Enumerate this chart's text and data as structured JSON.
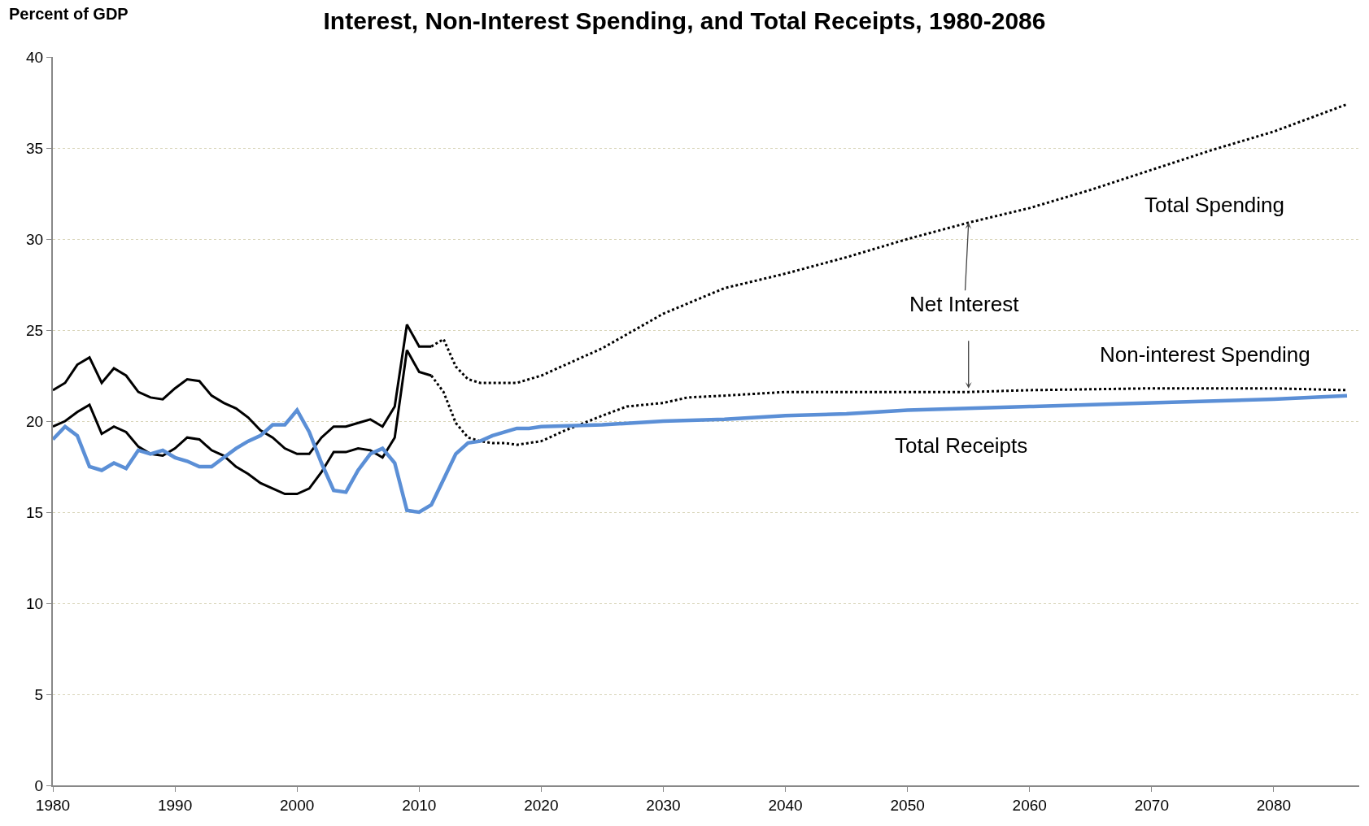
{
  "chart_data": {
    "type": "line",
    "title": "Interest, Non-Interest Spending, and Total Receipts, 1980-2086",
    "ylabel": "Percent of GDP",
    "xlim": [
      1980,
      2087
    ],
    "xticks": [
      1980,
      1990,
      2000,
      2010,
      2020,
      2030,
      2040,
      2050,
      2060,
      2070,
      2080
    ],
    "ylim": [
      0,
      40
    ],
    "yticks": [
      0,
      5,
      10,
      15,
      20,
      25,
      30,
      35,
      40
    ],
    "grid": "y",
    "marker": "none",
    "series": [
      {
        "color": "#000000",
        "line_style": "solid",
        "x": [
          1980,
          1981,
          1982,
          1983,
          1984,
          1985,
          1986,
          1987,
          1988,
          1989,
          1990,
          1991,
          1992,
          1993,
          1994,
          1995,
          1996,
          1997,
          1998,
          1999,
          2000,
          2001,
          2002,
          2003,
          2004,
          2005,
          2006,
          2007,
          2008,
          2009,
          2010,
          2011
        ],
        "values": [
          21.7,
          22.1,
          23.1,
          23.5,
          22.1,
          22.9,
          22.5,
          21.6,
          21.3,
          21.2,
          21.8,
          22.3,
          22.2,
          21.4,
          21.0,
          20.7,
          20.2,
          19.5,
          19.1,
          18.5,
          18.2,
          18.2,
          19.1,
          19.7,
          19.7,
          19.9,
          20.1,
          19.7,
          20.8,
          25.3,
          24.1,
          24.1
        ]
      },
      {
        "color": "#000000",
        "line_style": "dotted",
        "x": [
          2011,
          2012,
          2013,
          2014,
          2015,
          2016,
          2017,
          2018,
          2019,
          2020,
          2025,
          2030,
          2035,
          2040,
          2045,
          2050,
          2055,
          2060,
          2065,
          2070,
          2075,
          2080,
          2086
        ],
        "values": [
          24.1,
          24.5,
          23.0,
          22.3,
          22.1,
          22.1,
          22.1,
          22.1,
          22.3,
          22.5,
          24.0,
          25.9,
          27.3,
          28.1,
          29.0,
          30.0,
          30.9,
          31.7,
          32.7,
          33.8,
          34.9,
          35.9,
          37.4
        ]
      },
      {
        "color": "#000000",
        "line_style": "solid",
        "x": [
          1980,
          1981,
          1982,
          1983,
          1984,
          1985,
          1986,
          1987,
          1988,
          1989,
          1990,
          1991,
          1992,
          1993,
          1994,
          1995,
          1996,
          1997,
          1998,
          1999,
          2000,
          2001,
          2002,
          2003,
          2004,
          2005,
          2006,
          2007,
          2008,
          2009,
          2010,
          2011
        ],
        "values": [
          19.7,
          20.0,
          20.5,
          20.9,
          19.3,
          19.7,
          19.4,
          18.6,
          18.2,
          18.1,
          18.5,
          19.1,
          19.0,
          18.4,
          18.1,
          17.5,
          17.1,
          16.6,
          16.3,
          16.0,
          16.0,
          16.3,
          17.2,
          18.3,
          18.3,
          18.5,
          18.4,
          18.0,
          19.1,
          23.9,
          22.7,
          22.5
        ]
      },
      {
        "color": "#000000",
        "line_style": "dotted",
        "x": [
          2011,
          2012,
          2013,
          2014,
          2015,
          2016,
          2017,
          2018,
          2019,
          2020,
          2022,
          2025,
          2027,
          2030,
          2032,
          2035,
          2040,
          2050,
          2055,
          2060,
          2070,
          2080,
          2086
        ],
        "values": [
          22.5,
          21.6,
          19.9,
          19.1,
          18.9,
          18.8,
          18.8,
          18.7,
          18.8,
          18.9,
          19.5,
          20.3,
          20.8,
          21.0,
          21.3,
          21.4,
          21.6,
          21.6,
          21.6,
          21.7,
          21.8,
          21.8,
          21.7
        ]
      },
      {
        "color": "#5b8fd6",
        "line_style": "solid",
        "x": [
          1980,
          1981,
          1982,
          1983,
          1984,
          1985,
          1986,
          1987,
          1988,
          1989,
          1990,
          1991,
          1992,
          1993,
          1994,
          1995,
          1996,
          1997,
          1998,
          1999,
          2000,
          2001,
          2002,
          2003,
          2004,
          2005,
          2006,
          2007,
          2008,
          2009,
          2010,
          2011,
          2012,
          2013,
          2014,
          2015,
          2016,
          2017,
          2018,
          2019,
          2020,
          2025,
          2030,
          2035,
          2040,
          2045,
          2050,
          2060,
          2070,
          2080,
          2086
        ],
        "values": [
          19.0,
          19.7,
          19.2,
          17.5,
          17.3,
          17.7,
          17.4,
          18.4,
          18.2,
          18.4,
          18.0,
          17.8,
          17.5,
          17.5,
          18.0,
          18.5,
          18.9,
          19.2,
          19.8,
          19.8,
          20.6,
          19.4,
          17.7,
          16.2,
          16.1,
          17.3,
          18.2,
          18.5,
          17.7,
          15.1,
          15.0,
          15.4,
          16.8,
          18.2,
          18.8,
          18.9,
          19.2,
          19.4,
          19.6,
          19.6,
          19.7,
          19.8,
          20.0,
          20.1,
          20.3,
          20.4,
          20.6,
          20.8,
          21.0,
          21.2,
          21.4
        ]
      }
    ],
    "annotations": [
      "Total Spending",
      {
        "text": "Net Interest",
        "x": 2055,
        "y": 30.9
      },
      "Non-interest Spending",
      "Total Receipts"
    ]
  }
}
